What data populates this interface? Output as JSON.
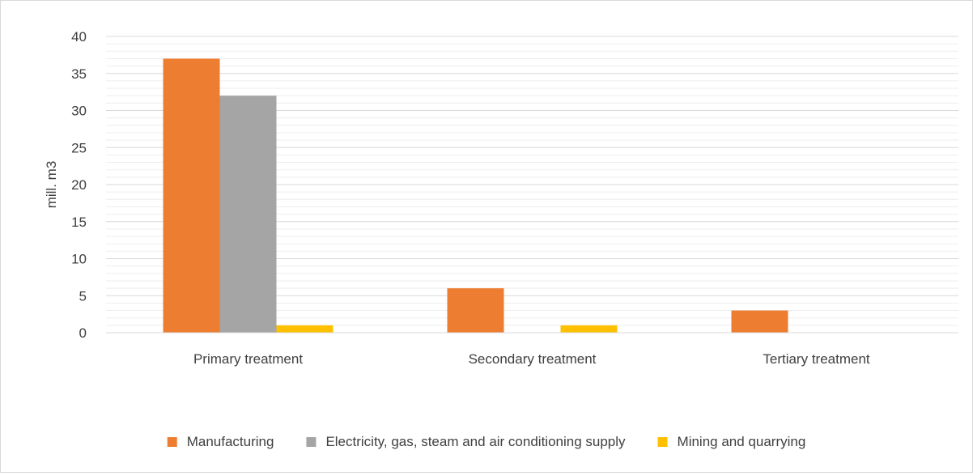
{
  "chart_data": {
    "type": "bar",
    "title": "",
    "xlabel": "",
    "ylabel": "mill. m3",
    "ylim": [
      0,
      40
    ],
    "yticks": [
      0,
      5,
      10,
      15,
      20,
      25,
      30,
      35,
      40
    ],
    "grid": true,
    "legend_position": "bottom",
    "categories": [
      "Primary treatment",
      "Secondary treatment",
      "Tertiary treatment"
    ],
    "series": [
      {
        "name": "Manufacturing",
        "color": "#ED7D31",
        "values": [
          37,
          6,
          3
        ]
      },
      {
        "name": "Electricity, gas, steam and air conditioning supply",
        "color": "#A5A5A5",
        "values": [
          32,
          0,
          0
        ]
      },
      {
        "name": "Mining and quarrying",
        "color": "#FFC000",
        "values": [
          1,
          1,
          0
        ]
      }
    ]
  }
}
